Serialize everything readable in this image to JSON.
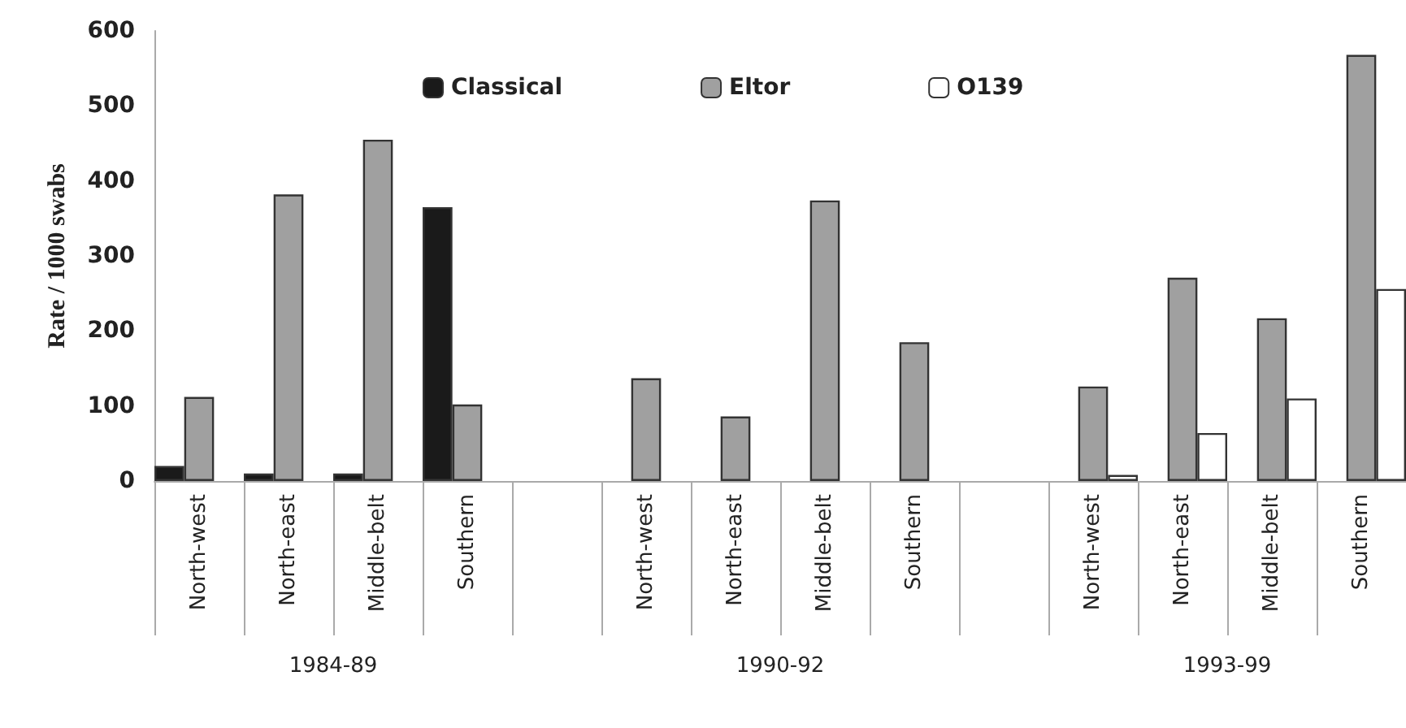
{
  "chart_data": {
    "type": "bar",
    "ylabel": "Rate / 1000 swabs",
    "categories": [
      "North-west",
      "North-east",
      "Middle-belt",
      "Southern",
      null,
      "North-west",
      "North-east",
      "Middle-belt",
      "Southern",
      null,
      "North-west",
      "North-east",
      "Middle-belt",
      "Southern"
    ],
    "series": [
      {
        "name": "Classical",
        "color": "#1a1a1a",
        "values": [
          20,
          10,
          10,
          365,
          null,
          null,
          null,
          null,
          null,
          null,
          null,
          null,
          null,
          null
        ]
      },
      {
        "name": "Eltor",
        "color": "#a0a0a0",
        "values": [
          112,
          382,
          455,
          102,
          null,
          137,
          86,
          374,
          185,
          null,
          126,
          271,
          217,
          568
        ]
      },
      {
        "name": "O139",
        "color": "#ffffff",
        "values": [
          null,
          null,
          null,
          null,
          null,
          null,
          null,
          null,
          null,
          null,
          8,
          64,
          110,
          256
        ]
      }
    ],
    "ylim": [
      0,
      600
    ],
    "yticks": [
      0,
      100,
      200,
      300,
      400,
      500,
      600
    ],
    "annotations": [
      "1984-89",
      "1990-92",
      "1993-99"
    ],
    "grid": false,
    "legend": "top"
  }
}
